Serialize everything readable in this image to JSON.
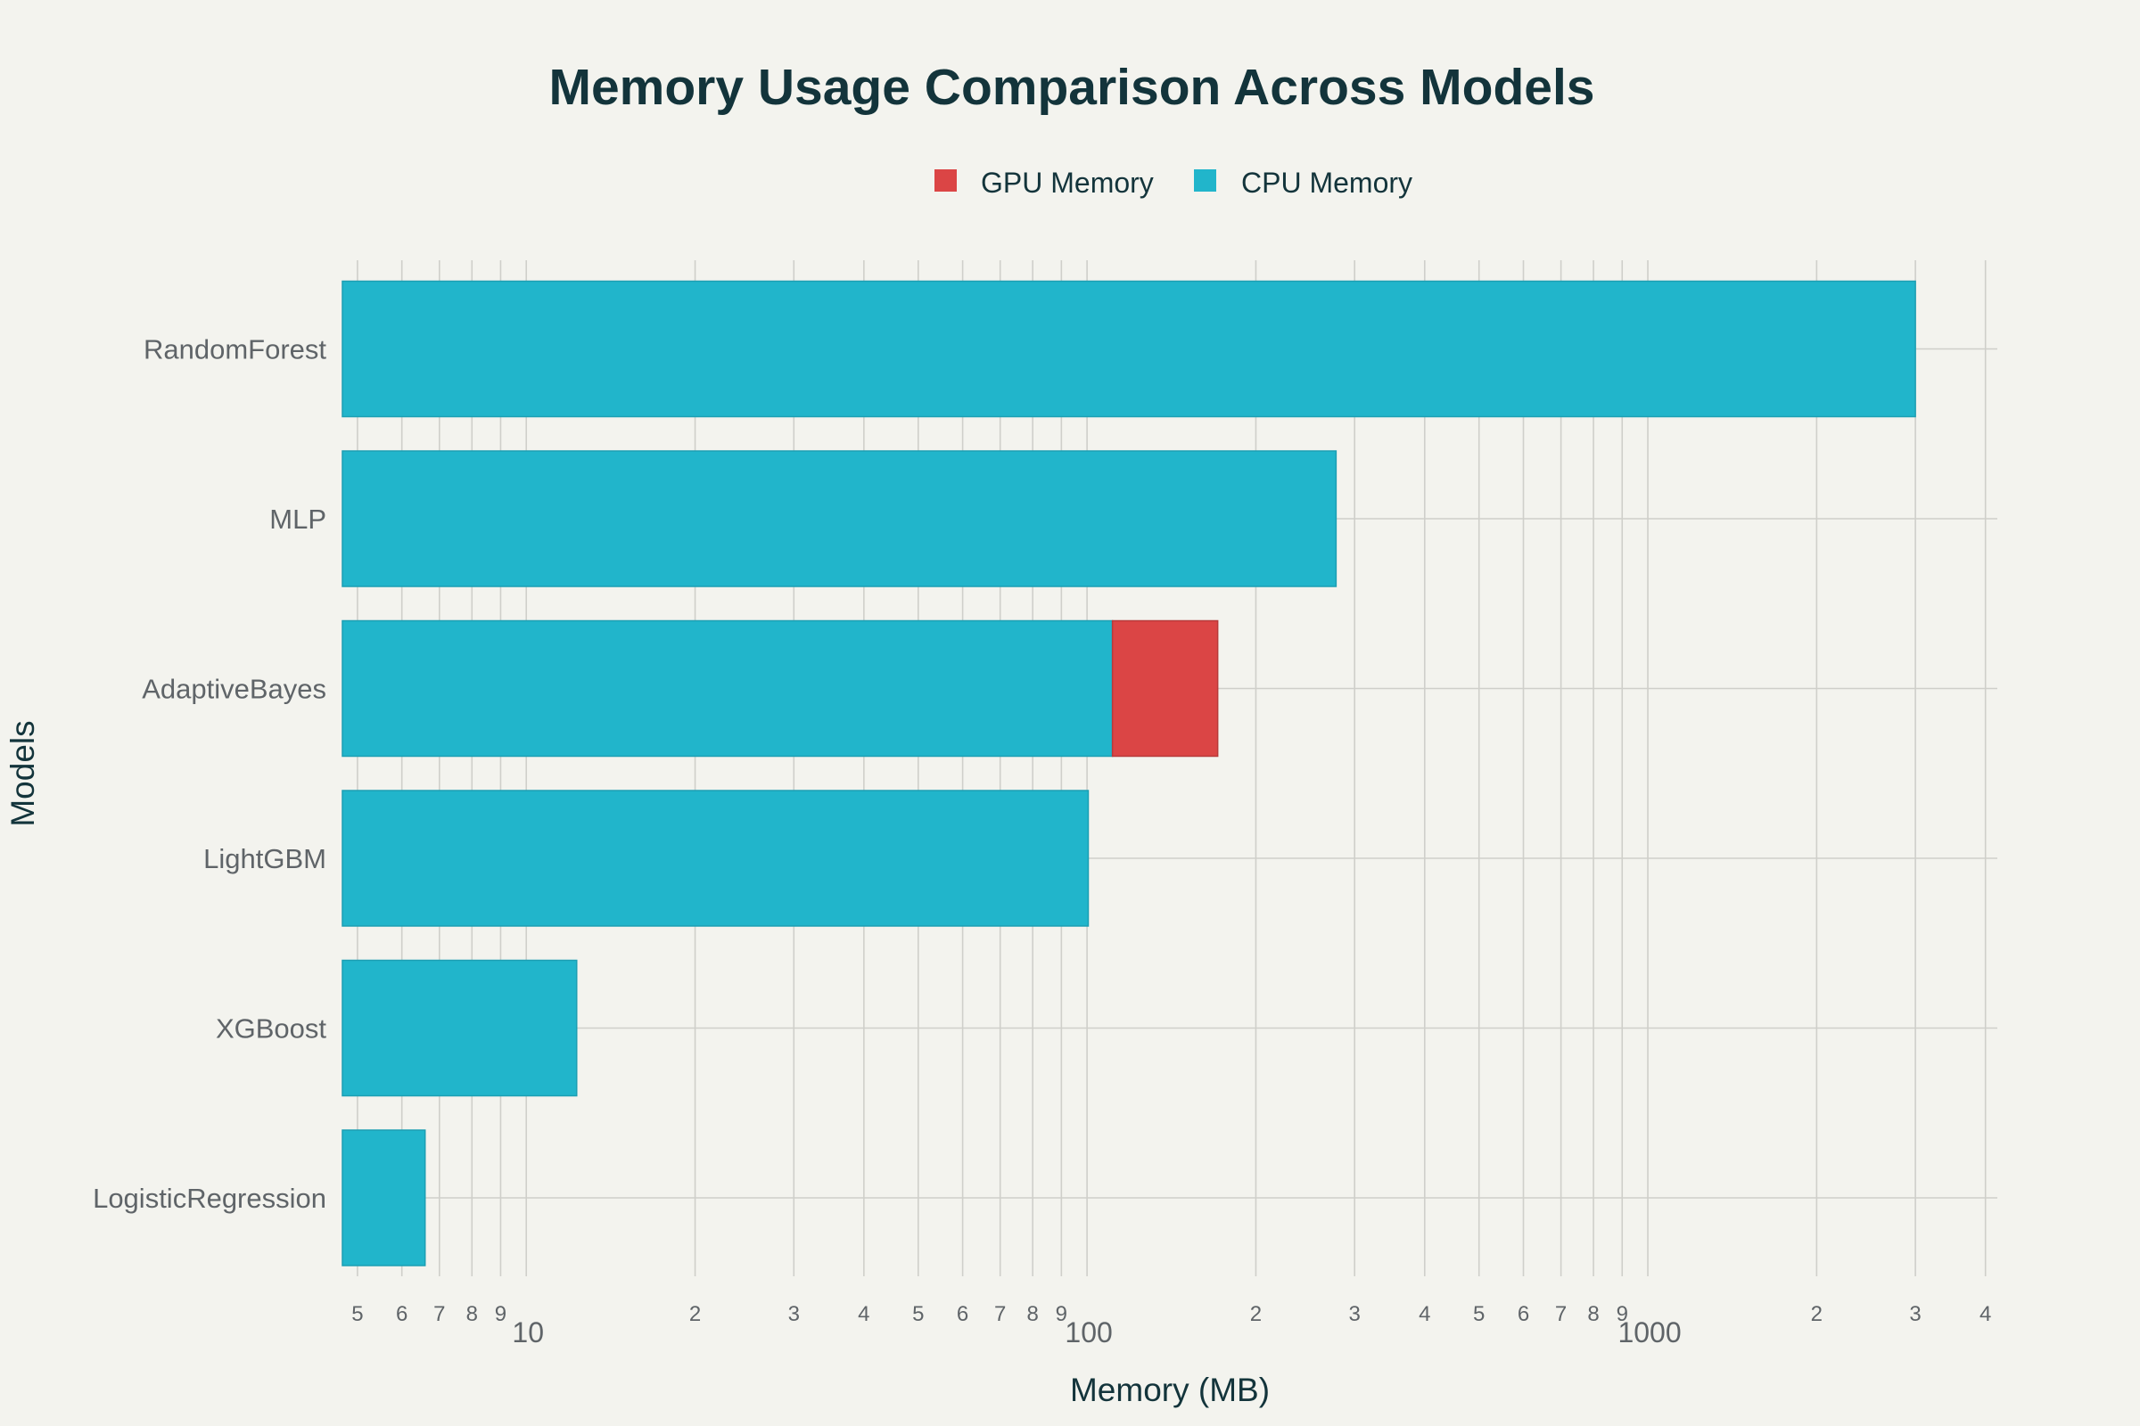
{
  "chart_data": {
    "type": "bar",
    "orientation": "horizontal",
    "stacked": true,
    "title": "Memory Usage Comparison Across Models",
    "xlabel": "Memory (MB)",
    "ylabel": "Models",
    "x_scale": "log",
    "xlim": [
      4.7,
      4200
    ],
    "grid": true,
    "legend_position": "top-center",
    "categories": [
      "LogisticRegression",
      "XGBoost",
      "LightGBM",
      "AdaptiveBayes",
      "MLP",
      "RandomForest"
    ],
    "series": [
      {
        "name": "GPU Memory",
        "color": "#db4545",
        "values": [
          0,
          0,
          0,
          60,
          0,
          0
        ]
      },
      {
        "name": "CPU Memory",
        "color": "#21b5cb",
        "values": [
          6.6,
          12.3,
          100.5,
          111,
          278,
          3000
        ]
      }
    ],
    "stack_order": [
      "CPU Memory",
      "GPU Memory"
    ],
    "tick_labels": {
      "minor": [
        "5",
        "6",
        "7",
        "8",
        "9",
        "2",
        "3",
        "4",
        "5",
        "6",
        "7",
        "8",
        "9",
        "2",
        "3",
        "4",
        "5",
        "6",
        "7",
        "8",
        "9",
        "2",
        "3",
        "4"
      ],
      "major": [
        "10",
        "100",
        "1000"
      ]
    }
  }
}
